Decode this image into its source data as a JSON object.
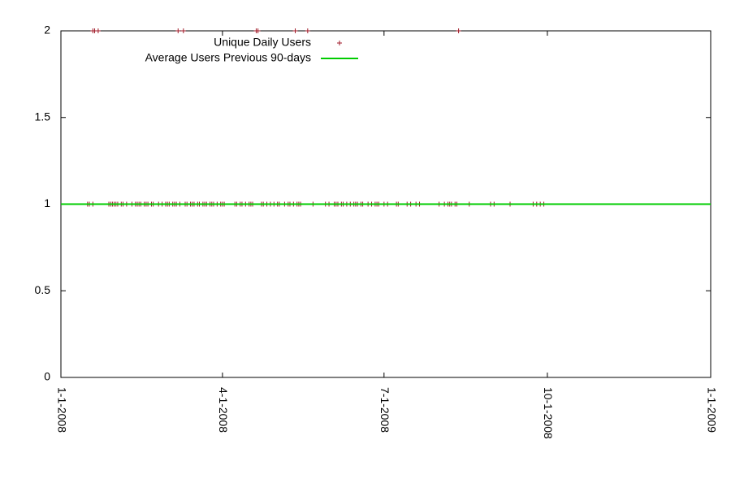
{
  "chart_data": {
    "type": "scatter",
    "xlim": [
      "2008-01-01",
      "2009-01-01"
    ],
    "xticks": [
      {
        "value": "2008-01-01",
        "label": "1-1-2008"
      },
      {
        "value": "2008-04-01",
        "label": "4-1-2008"
      },
      {
        "value": "2008-07-01",
        "label": "7-1-2008"
      },
      {
        "value": "2008-10-01",
        "label": "10-1-2008"
      },
      {
        "value": "2009-01-01",
        "label": "1-1-2009"
      }
    ],
    "ylim": [
      0,
      2
    ],
    "yticks": [
      0,
      0.5,
      1,
      1.5,
      2
    ],
    "grid": false,
    "legend": "top-left",
    "series": [
      {
        "name": "Unique Daily Users",
        "color": "#a01a28",
        "mode": "points",
        "x": [
          "2008-01-16",
          "2008-01-17",
          "2008-01-19",
          "2008-01-28",
          "2008-01-29",
          "2008-01-30",
          "2008-01-31",
          "2008-02-01",
          "2008-02-02",
          "2008-02-04",
          "2008-02-05",
          "2008-02-07",
          "2008-02-10",
          "2008-02-12",
          "2008-02-13",
          "2008-02-14",
          "2008-02-15",
          "2008-02-17",
          "2008-02-18",
          "2008-02-19",
          "2008-02-21",
          "2008-02-22",
          "2008-02-25",
          "2008-02-27",
          "2008-02-29",
          "2008-03-01",
          "2008-03-02",
          "2008-03-04",
          "2008-03-05",
          "2008-03-06",
          "2008-03-08",
          "2008-03-11",
          "2008-03-12",
          "2008-03-14",
          "2008-03-15",
          "2008-03-16",
          "2008-03-18",
          "2008-03-19",
          "2008-03-21",
          "2008-03-22",
          "2008-03-23",
          "2008-03-25",
          "2008-03-26",
          "2008-03-27",
          "2008-03-29",
          "2008-03-31",
          "2008-04-01",
          "2008-04-02",
          "2008-04-08",
          "2008-04-09",
          "2008-04-11",
          "2008-04-12",
          "2008-04-14",
          "2008-04-16",
          "2008-04-17",
          "2008-04-18",
          "2008-04-23",
          "2008-04-24",
          "2008-04-26",
          "2008-04-28",
          "2008-04-30",
          "2008-05-02",
          "2008-05-03",
          "2008-05-06",
          "2008-05-08",
          "2008-05-09",
          "2008-05-11",
          "2008-05-13",
          "2008-05-14",
          "2008-05-15",
          "2008-05-22",
          "2008-05-29",
          "2008-05-31",
          "2008-06-03",
          "2008-06-04",
          "2008-06-05",
          "2008-06-07",
          "2008-06-08",
          "2008-06-10",
          "2008-06-12",
          "2008-06-14",
          "2008-06-15",
          "2008-06-16",
          "2008-06-18",
          "2008-06-19",
          "2008-06-22",
          "2008-06-24",
          "2008-06-26",
          "2008-06-27",
          "2008-06-28",
          "2008-07-01",
          "2008-07-03",
          "2008-07-08",
          "2008-07-09",
          "2008-07-14",
          "2008-07-16",
          "2008-07-19",
          "2008-07-21",
          "2008-08-01",
          "2008-08-04",
          "2008-08-06",
          "2008-08-07",
          "2008-08-08",
          "2008-08-10",
          "2008-08-11",
          "2008-08-18",
          "2008-08-30",
          "2008-09-01",
          "2008-09-10",
          "2008-09-23",
          "2008-09-25",
          "2008-09-27",
          "2008-09-29",
          "2008-01-19",
          "2008-01-20",
          "2008-01-22",
          "2008-03-07",
          "2008-03-10",
          "2008-04-20",
          "2008-04-21",
          "2008-05-12",
          "2008-05-19",
          "2008-08-12"
        ],
        "values": [
          1,
          1,
          1,
          1,
          1,
          1,
          1,
          1,
          1,
          1,
          1,
          1,
          1,
          1,
          1,
          1,
          1,
          1,
          1,
          1,
          1,
          1,
          1,
          1,
          1,
          1,
          1,
          1,
          1,
          1,
          1,
          1,
          1,
          1,
          1,
          1,
          1,
          1,
          1,
          1,
          1,
          1,
          1,
          1,
          1,
          1,
          1,
          1,
          1,
          1,
          1,
          1,
          1,
          1,
          1,
          1,
          1,
          1,
          1,
          1,
          1,
          1,
          1,
          1,
          1,
          1,
          1,
          1,
          1,
          1,
          1,
          1,
          1,
          1,
          1,
          1,
          1,
          1,
          1,
          1,
          1,
          1,
          1,
          1,
          1,
          1,
          1,
          1,
          1,
          1,
          1,
          1,
          1,
          1,
          1,
          1,
          1,
          1,
          1,
          1,
          1,
          1,
          1,
          1,
          1,
          1,
          1,
          1,
          1,
          1,
          1,
          1,
          1,
          2,
          2,
          2,
          2,
          2,
          2,
          2,
          2,
          2,
          2
        ]
      },
      {
        "name": "Average Users Previous 90-days",
        "color": "#00cc00",
        "mode": "line",
        "x": [
          "2008-01-01",
          "2009-01-01"
        ],
        "values": [
          1,
          1
        ]
      }
    ]
  }
}
